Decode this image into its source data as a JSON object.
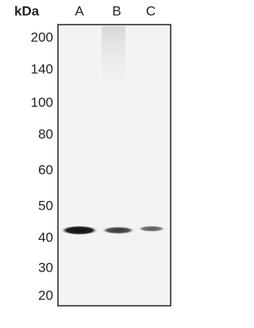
{
  "unit": "kDa",
  "lanes": [
    "A",
    "B",
    "C"
  ],
  "markers": [
    "200",
    "140",
    "100",
    "80",
    "60",
    "50",
    "40",
    "30",
    "20"
  ]
}
